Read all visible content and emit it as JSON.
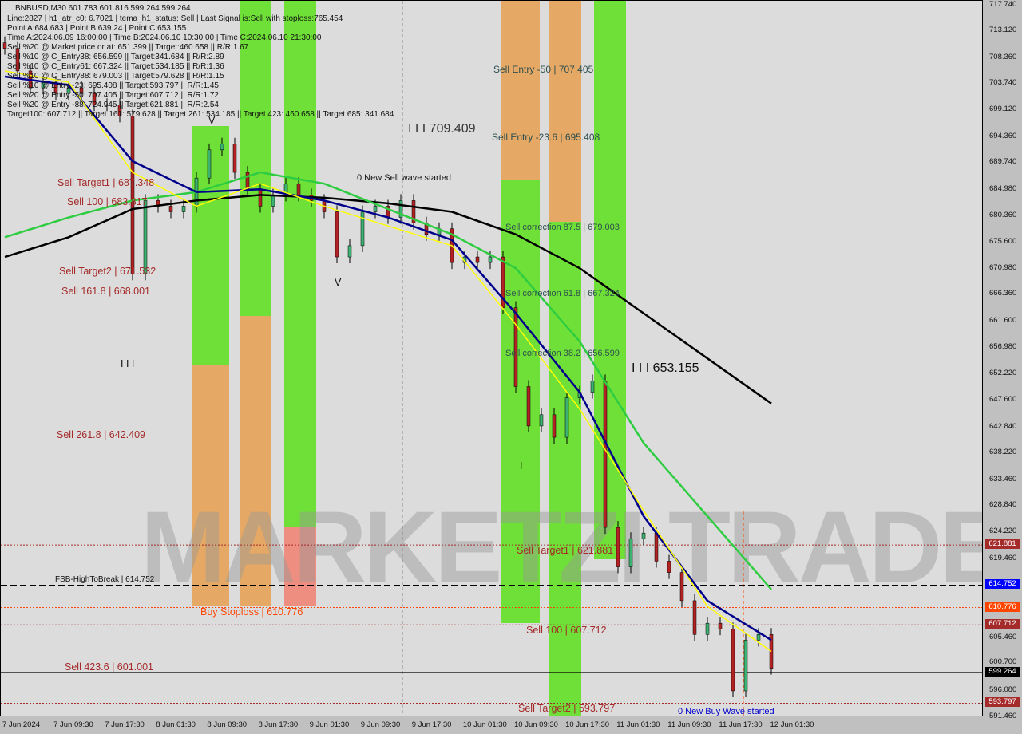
{
  "header": {
    "symbol_line": "BNBUSD,M30  601.783 601.816 599.264 599.264",
    "info_lines": [
      "Line:2827 | h1_atr_c0: 6.7021 | tema_h1_status: Sell | Last Signal is:Sell with stoploss:765.454",
      "Point A:684.683 | Point B:639.24 | Point C:653.155",
      "Time A:2024.06.09 16:00:00 | Time B:2024.06.10 10:30:00 | Time C:2024.06.10 21:30:00",
      "Sell %20 @ Market price or at: 651.399 || Target:460.658 || R/R:1.67",
      "Sell %10 @ C_Entry38: 656.599 || Target:341.684 || R/R:2.89",
      "Sell %10 @ C_Entry61: 667.324 || Target:534.185 || R/R:1.36",
      "Sell %10 @ C_Entry88: 679.003 || Target:579.628 || R/R:1.15",
      "Sell %10 @ Entry -23: 695.408 || Target:593.797 || R/R:1.45",
      "Sell %20 @ Entry -50: 707.405 || Target:607.712 || R/R:1.72",
      "Sell %20 @ Entry -88: 724.945 || Target:621.881 || R/R:2.54",
      "Target100: 607.712 || Target 161: 579.628 || Target 261: 534.185 || Target 423: 460.658 || Target 685: 341.684"
    ]
  },
  "annotations": {
    "sell_target1_left": "Sell Target1 | 687.348",
    "sell_100_left": "Sell 100 | 683.817",
    "sell_target2_left": "Sell Target2 | 671.532",
    "sell_161_left": "Sell 161.8 | 668.001",
    "sell_261_left": "Sell  261.8 | 642.409",
    "sell_423_left": "Sell  423.6 | 601.001",
    "buy_stoploss": "Buy Stoploss | 610.776",
    "fsb": "FSB-HighToBreak | 614.752",
    "sell_entry_50": "Sell Entry -50 | 707.405",
    "sell_entry_23": "Sell Entry -23.6 | 695.408",
    "sell_corr_875": "Sell correction 87.5 | 679.003",
    "sell_corr_618": "Sell correction 61.8 | 667.324",
    "sell_corr_382": "Sell correction 38.2 | 656.599",
    "point_c": "I I I 653.155",
    "point_a_top": "I I I 709.409",
    "new_sell_wave": "0 New Sell wave started",
    "new_buy_wave": "0 New Buy Wave started",
    "sell_target1_right": "Sell Target1 | 621.881",
    "sell_100_right": "Sell 100 | 607.712",
    "sell_target2_right": "Sell Target2 | 593.797",
    "marker_v1": "V",
    "marker_v2": "V",
    "marker_iii": "I I I",
    "marker_i": "I"
  },
  "watermark": "MARKETZI TRADE",
  "colors": {
    "bull": "#3cb371",
    "bear": "#b22222",
    "green_zone": "#5ce01a",
    "orange_zone": "#e8a050",
    "ma_slow": "#000000",
    "ma_green": "#2ecc40",
    "ma_navy": "#00008b",
    "ma_yellow": "#ffff00"
  },
  "chart_data": {
    "type": "candlestick",
    "title": "BNBUSD,M30",
    "ylim": [
      591.46,
      717.74
    ],
    "y_ticks": [
      "717.740",
      "713.120",
      "708.360",
      "703.740",
      "699.120",
      "694.360",
      "689.740",
      "684.980",
      "680.360",
      "675.600",
      "670.980",
      "666.360",
      "661.600",
      "656.980",
      "652.220",
      "647.600",
      "642.840",
      "638.220",
      "633.460",
      "628.840",
      "624.220",
      "619.460",
      "605.460",
      "600.700",
      "596.080",
      "591.460"
    ],
    "x_ticks": [
      "7 Jun 2024",
      "7 Jun 09:30",
      "7 Jun 17:30",
      "8 Jun 01:30",
      "8 Jun 09:30",
      "8 Jun 17:30",
      "9 Jun 01:30",
      "9 Jun 09:30",
      "9 Jun 17:30",
      "10 Jun 01:30",
      "10 Jun 09:30",
      "10 Jun 17:30",
      "11 Jun 01:30",
      "11 Jun 09:30",
      "11 Jun 17:30",
      "12 Jun 01:30"
    ],
    "closes": [
      710,
      706,
      703,
      704,
      702,
      703,
      702,
      700,
      700,
      698,
      670,
      683,
      682,
      681,
      682,
      687,
      692,
      693,
      688,
      685,
      682,
      684,
      686,
      684,
      683,
      681,
      673,
      675,
      681,
      682,
      680,
      683,
      679,
      677,
      678,
      672,
      673,
      672,
      673,
      664,
      650,
      643,
      645,
      641,
      648,
      649,
      651,
      625,
      618,
      623,
      624,
      619,
      617,
      612,
      606,
      608,
      607,
      596,
      605,
      606,
      600
    ],
    "ma_slow": [
      673,
      676.5,
      681.5,
      683,
      684,
      683.5,
      682.5,
      681,
      677,
      671,
      663,
      655,
      647
    ],
    "ma_green": [
      676.5,
      680,
      683,
      684.5,
      688,
      686,
      681.5,
      677,
      671,
      658,
      640,
      627,
      614
    ],
    "ma_navy": [
      705,
      703.5,
      690,
      684.5,
      685,
      683,
      680,
      676,
      663,
      649,
      627,
      612,
      605
    ],
    "ma_yellow": [
      706,
      704,
      688,
      682,
      686,
      682,
      678.5,
      675,
      661,
      646,
      628,
      611,
      603
    ],
    "levels": [
      {
        "label": "621.881",
        "value": 621.881,
        "color": "#a52a2a",
        "style": "dotted"
      },
      {
        "label": "614.752",
        "value": 614.752,
        "color": "#0000ff",
        "style": "dashed"
      },
      {
        "label": "610.776",
        "value": 610.776,
        "color": "#ff4500",
        "style": "dotted"
      },
      {
        "label": "607.712",
        "value": 607.712,
        "color": "#a52a2a",
        "style": "dotted"
      },
      {
        "label": "599.264",
        "value": 599.264,
        "color": "#000000",
        "style": "solid"
      },
      {
        "label": "593.797",
        "value": 593.797,
        "color": "#a52a2a",
        "style": "dotted"
      }
    ]
  }
}
